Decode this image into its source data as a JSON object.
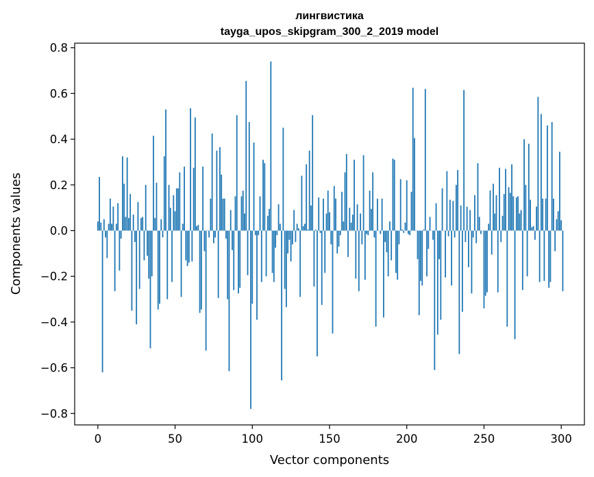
{
  "chart_data": {
    "type": "bar",
    "title": "лингвистика",
    "subtitle": "tayga_upos_skipgram_300_2_2019 model",
    "xlabel": "Vector components",
    "ylabel": "Components values",
    "xlim": [
      -15,
      315
    ],
    "ylim": [
      -0.85,
      0.82
    ],
    "xticks": [
      0,
      50,
      100,
      150,
      200,
      250,
      300
    ],
    "yticks": [
      -0.8,
      -0.6,
      -0.4,
      -0.2,
      0.0,
      0.2,
      0.4,
      0.6,
      0.8
    ],
    "xtick_labels": [
      "0",
      "50",
      "100",
      "150",
      "200",
      "250",
      "300"
    ],
    "ytick_labels": [
      "−0.8",
      "−0.6",
      "−0.4",
      "−0.2",
      "0.0",
      "0.2",
      "0.4",
      "0.6",
      "0.8"
    ],
    "bar_color": "#1f77b4",
    "grid": false,
    "legend": "none",
    "series": [
      {
        "values": [
          0.04,
          0.235,
          0.035,
          -0.62,
          0.05,
          -0.03,
          -0.12,
          0.03,
          0.14,
          0.03,
          0.105,
          -0.265,
          0.03,
          0.12,
          -0.175,
          -0.035,
          0.325,
          0.205,
          0.06,
          0.32,
          0.055,
          0.16,
          -0.35,
          0.07,
          -0.05,
          -0.41,
          0.125,
          -0.255,
          0.055,
          0.06,
          -0.13,
          0.2,
          -0.11,
          -0.21,
          -0.515,
          -0.2,
          0.415,
          0.055,
          0.21,
          -0.345,
          -0.32,
          0.05,
          -0.03,
          0.325,
          0.53,
          -0.3,
          0.2,
          0.1,
          -0.225,
          0.155,
          0.085,
          0.185,
          0.185,
          0.255,
          -0.29,
          0.03,
          0.28,
          -0.13,
          -0.155,
          -0.14,
          0.535,
          -0.135,
          0.275,
          0.495,
          0.02,
          0.025,
          -0.36,
          -0.345,
          0.28,
          -0.09,
          -0.525,
          0.0,
          -0.03,
          0.14,
          0.425,
          -0.055,
          -0.03,
          0.35,
          -0.295,
          0.365,
          0.245,
          0.14,
          0.14,
          -0.035,
          -0.3,
          -0.615,
          0.09,
          -0.085,
          -0.26,
          0.15,
          0.505,
          -0.275,
          -0.25,
          0.15,
          0.175,
          0.075,
          0.655,
          -0.195,
          0.475,
          -0.78,
          -0.32,
          0.385,
          -0.02,
          -0.39,
          -0.02,
          0.15,
          -0.225,
          0.31,
          0.295,
          -0.2,
          0.065,
          0.095,
          0.74,
          -0.185,
          -0.225,
          -0.075,
          -0.02,
          0.115,
          0.03,
          -0.655,
          0.45,
          -0.255,
          -0.335,
          -0.1,
          -0.04,
          -0.135,
          -0.06,
          0.09,
          -0.05,
          0.03,
          0.01,
          -0.29,
          0.24,
          0.02,
          0.03,
          0.29,
          0.005,
          0.35,
          0.11,
          0.505,
          -0.245,
          0.005,
          -0.55,
          0.145,
          -0.01,
          -0.325,
          0.14,
          -0.185,
          0.075,
          0.175,
          0.08,
          -0.06,
          -0.45,
          0.195,
          0.14,
          -0.1,
          -0.07,
          -0.02,
          0.17,
          0.04,
          0.255,
          0.335,
          -0.115,
          0.1,
          0.035,
          0.07,
          0.31,
          -0.21,
          0.115,
          -0.265,
          0.075,
          -0.06,
          0.33,
          -0.215,
          -0.015,
          -0.02,
          0.175,
          0.095,
          0.255,
          -0.03,
          -0.42,
          0.14,
          0.0,
          -0.015,
          0.14,
          -0.38,
          -0.05,
          -0.095,
          -0.2,
          0.04,
          -0.13,
          0.315,
          0.31,
          -0.185,
          -0.215,
          -0.06,
          0.225,
          0.005,
          -0.01,
          0.035,
          0.22,
          -0.015,
          -0.02,
          0.17,
          0.625,
          0.405,
          0.0,
          -0.125,
          -0.37,
          -0.22,
          -0.24,
          0.005,
          0.62,
          -0.2,
          -0.08,
          0.06,
          0.0,
          -0.04,
          -0.61,
          0.12,
          -0.455,
          -0.125,
          -0.39,
          0.185,
          0.0,
          -0.205,
          0.26,
          -0.025,
          0.135,
          -0.24,
          0.13,
          -0.03,
          0.2,
          0.265,
          -0.54,
          0.11,
          -0.355,
          0.615,
          -0.05,
          0.105,
          -0.16,
          0.09,
          -0.275,
          -0.03,
          0.155,
          -0.055,
          0.295,
          0.06,
          -0.015,
          0.0,
          -0.34,
          -0.285,
          -0.27,
          0.03,
          0.175,
          -0.105,
          0.205,
          0.075,
          0.155,
          -0.27,
          0.275,
          -0.05,
          0.065,
          0.16,
          0.27,
          -0.42,
          0.19,
          0.165,
          0.29,
          0.15,
          -0.475,
          0.145,
          0.15,
          0.075,
          0.09,
          -0.26,
          0.4,
          0.2,
          -0.2,
          0.38,
          0.135,
          0.015,
          0.02,
          -0.04,
          0.105,
          0.585,
          -0.225,
          0.51,
          0.14,
          -0.22,
          0.14,
          0.46,
          -0.25,
          -0.225,
          0.475,
          0.14,
          -0.09,
          0.05,
          0.085,
          0.345,
          0.045,
          -0.265
        ]
      }
    ]
  }
}
